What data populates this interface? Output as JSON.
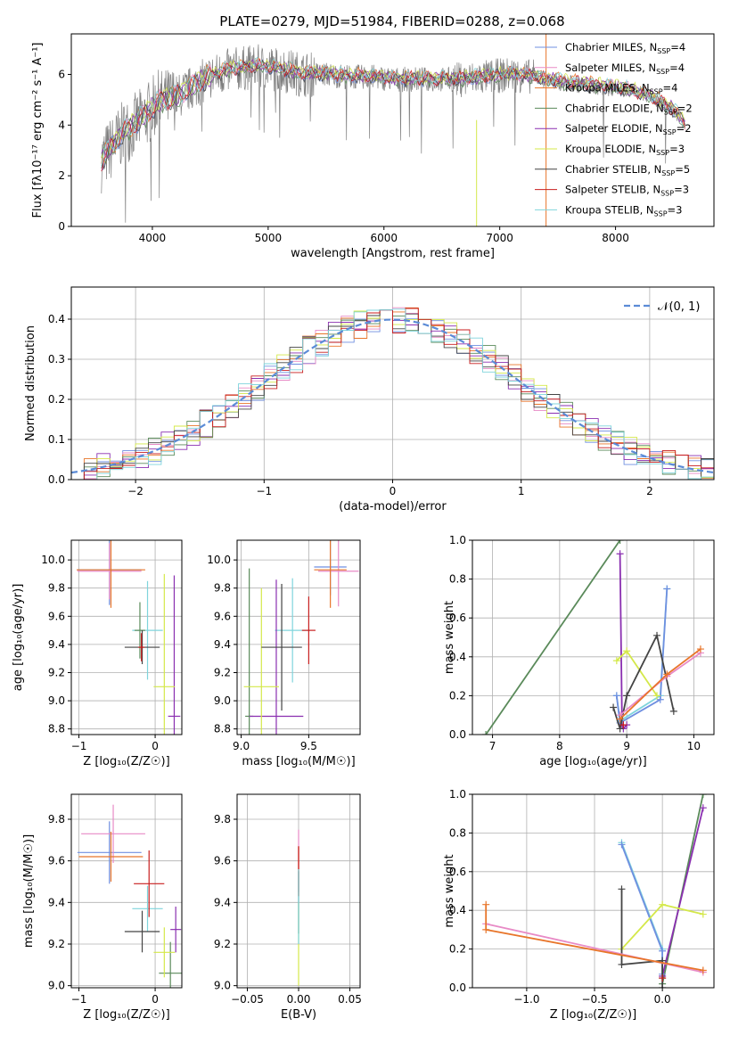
{
  "title": "PLATE=0279, MJD=51984, FIBERID=0288, z=0.068",
  "chart_data": [
    {
      "id": "spectrum",
      "type": "line",
      "xlabel": "wavelength [Angstrom, rest frame]",
      "ylabel": "Flux [fλ10⁻¹⁷ erg cm⁻² s⁻¹ A⁻¹]",
      "xlim": [
        3300,
        8850
      ],
      "ylim": [
        0,
        7.6
      ],
      "xticks": [
        4000,
        5000,
        6000,
        7000,
        8000
      ],
      "yticks": [
        0,
        2,
        4,
        6
      ],
      "legend_position": "top-right",
      "legend": [
        {
          "name": "Chabrier MILES, N",
          "sub": "SSP",
          "suffix": "=4",
          "color": "#6f8fe0"
        },
        {
          "name": "Salpeter MILES, N",
          "sub": "SSP",
          "suffix": "=4",
          "color": "#e88ac6"
        },
        {
          "name": "Kroupa MILES, N",
          "sub": "SSP",
          "suffix": "=4",
          "color": "#e8752a"
        },
        {
          "name": "Chabrier ELODIE, N",
          "sub": "SSP",
          "suffix": "=2",
          "color": "#5a8a5a"
        },
        {
          "name": "Salpeter ELODIE, N",
          "sub": "SSP",
          "suffix": "=2",
          "color": "#8a2fb0"
        },
        {
          "name": "Kroupa ELODIE, N",
          "sub": "SSP",
          "suffix": "=3",
          "color": "#d4e84a"
        },
        {
          "name": "Chabrier STELIB, N",
          "sub": "SSP",
          "suffix": "=5",
          "color": "#444444"
        },
        {
          "name": "Salpeter STELIB, N",
          "sub": "SSP",
          "suffix": "=3",
          "color": "#c81e1e"
        },
        {
          "name": "Kroupa STELIB, N",
          "sub": "SSP",
          "suffix": "=3",
          "color": "#7fd4dc"
        }
      ],
      "model_curve": [
        [
          3560,
          2.6
        ],
        [
          3650,
          3.1
        ],
        [
          3700,
          3.4
        ],
        [
          3750,
          3.7
        ],
        [
          3850,
          4.0
        ],
        [
          3950,
          4.4
        ],
        [
          4050,
          4.9
        ],
        [
          4150,
          5.0
        ],
        [
          4250,
          5.2
        ],
        [
          4350,
          5.5
        ],
        [
          4500,
          5.9
        ],
        [
          4700,
          6.2
        ],
        [
          4900,
          6.3
        ],
        [
          5100,
          6.2
        ],
        [
          5300,
          6.0
        ],
        [
          5500,
          6.0
        ],
        [
          5700,
          5.9
        ],
        [
          5900,
          5.9
        ],
        [
          6100,
          5.8
        ],
        [
          6300,
          5.8
        ],
        [
          6500,
          5.8
        ],
        [
          6700,
          5.8
        ],
        [
          6900,
          5.9
        ],
        [
          7100,
          6.0
        ],
        [
          7300,
          5.9
        ],
        [
          7500,
          5.7
        ],
        [
          7700,
          5.6
        ],
        [
          7900,
          5.5
        ],
        [
          8100,
          5.4
        ],
        [
          8300,
          5.1
        ],
        [
          8500,
          4.6
        ],
        [
          8600,
          4.0
        ]
      ]
    },
    {
      "id": "residuals",
      "type": "line",
      "xlabel": "(data-model)/error",
      "ylabel": "Normed distribution",
      "xlim": [
        -2.5,
        2.5
      ],
      "ylim": [
        0,
        0.48
      ],
      "xticks": [
        -2,
        -1,
        0,
        1,
        2
      ],
      "xticklabels": [
        "−2",
        "−1",
        "0",
        "1",
        "2"
      ],
      "yticks": [
        0,
        0.1,
        0.2,
        0.3,
        0.4
      ],
      "yticklabels": [
        "0.0",
        "0.1",
        "0.2",
        "0.3",
        "0.4"
      ],
      "legend": "𝒩(0, 1)",
      "gaussian_color": "#5b8bd6",
      "bin_width": 0.1
    },
    {
      "id": "age_vs_Z",
      "type": "scatter",
      "xlabel": "Z [log₁₀(Z/Z☉)]",
      "ylabel": "age [log₁₀(age/yr)]",
      "xlim": [
        -1.1,
        0.35
      ],
      "ylim": [
        8.76,
        10.14
      ],
      "xticks": [
        -1,
        0
      ],
      "xticklabels": [
        "−1",
        "0"
      ],
      "yticks": [
        8.8,
        9.0,
        9.2,
        9.4,
        9.6,
        9.8,
        10.0
      ],
      "yticklabels": [
        "8.8",
        "9.0",
        "9.2",
        "9.4",
        "9.6",
        "9.8",
        "10.0"
      ],
      "points": [
        {
          "x": -0.6,
          "y": 9.93,
          "dx": 0.42,
          "dy": 0.25,
          "c": 0
        },
        {
          "x": -0.6,
          "y": 9.92,
          "dx": 0.42,
          "dy": 0.2,
          "c": 1
        },
        {
          "x": -0.58,
          "y": 9.93,
          "dx": 0.45,
          "dy": 0.27,
          "c": 2
        },
        {
          "x": -0.1,
          "y": 9.5,
          "dx": 0.2,
          "dy": 0.35,
          "c": 8
        },
        {
          "x": -0.2,
          "y": 9.5,
          "dx": 0.07,
          "dy": 0.2,
          "c": 3
        },
        {
          "x": 0.25,
          "y": 8.89,
          "dx": 0.08,
          "dy": 1.0,
          "c": 4
        },
        {
          "x": 0.12,
          "y": 9.1,
          "dx": 0.14,
          "dy": 0.8,
          "c": 5
        },
        {
          "x": -0.17,
          "y": 9.38,
          "dx": 0.23,
          "dy": 0.12,
          "c": 6
        },
        {
          "x": -0.18,
          "y": 9.38,
          "dx": 0.04,
          "dy": 0.1,
          "c": 7
        }
      ]
    },
    {
      "id": "age_vs_mass",
      "type": "scatter",
      "xlabel": "mass [log₁₀(M/M☉)]",
      "ylabel": "",
      "xlim": [
        8.97,
        9.88
      ],
      "ylim": [
        8.76,
        10.14
      ],
      "xticks": [
        9.0,
        9.5
      ],
      "xticklabels": [
        "9.0",
        "9.5"
      ],
      "yticks": [
        8.8,
        9.0,
        9.2,
        9.4,
        9.6,
        9.8,
        10.0
      ],
      "yticklabels": [
        "8.8",
        "9.0",
        "9.2",
        "9.4",
        "9.6",
        "9.8",
        "10.0"
      ],
      "points": [
        {
          "x": 9.66,
          "y": 9.95,
          "dx": 0.12,
          "dy": 0.2,
          "c": 0
        },
        {
          "x": 9.72,
          "y": 9.92,
          "dx": 0.15,
          "dy": 0.25,
          "c": 1
        },
        {
          "x": 9.66,
          "y": 9.93,
          "dx": 0.12,
          "dy": 0.27,
          "c": 2
        },
        {
          "x": 9.38,
          "y": 9.5,
          "dx": 0.13,
          "dy": 0.37,
          "c": 8
        },
        {
          "x": 9.06,
          "y": 8.89,
          "dx": 0.03,
          "dy": 1.05,
          "c": 3
        },
        {
          "x": 9.26,
          "y": 8.89,
          "dx": 0.2,
          "dy": 0.97,
          "c": 4
        },
        {
          "x": 9.15,
          "y": 9.1,
          "dx": 0.13,
          "dy": 0.7,
          "c": 5
        },
        {
          "x": 9.3,
          "y": 9.38,
          "dx": 0.15,
          "dy": 0.45,
          "c": 6
        },
        {
          "x": 9.5,
          "y": 9.5,
          "dx": 0.05,
          "dy": 0.24,
          "c": 7
        }
      ]
    },
    {
      "id": "weight_vs_age",
      "type": "line",
      "xlabel": "age [log₁₀(age/yr)]",
      "ylabel": "mass weight",
      "xlim": [
        6.7,
        10.3
      ],
      "ylim": [
        0,
        1.0
      ],
      "xticks": [
        7,
        8,
        9,
        10
      ],
      "xticklabels": [
        "7",
        "8",
        "9",
        "10"
      ],
      "yticks": [
        0,
        0.2,
        0.4,
        0.6,
        0.8,
        1.0
      ],
      "yticklabels": [
        "0.0",
        "0.2",
        "0.4",
        "0.6",
        "0.8",
        "1.0"
      ],
      "series": [
        {
          "c": 3,
          "x": [
            6.9,
            8.9
          ],
          "y": [
            0.0,
            1.0
          ]
        },
        {
          "c": 4,
          "x": [
            8.9,
            8.93,
            8.95,
            9.0
          ],
          "y": [
            0.93,
            0.05,
            0.03,
            0.05
          ]
        },
        {
          "c": 8,
          "x": [
            8.85,
            8.9,
            9.5,
            9.6
          ],
          "y": [
            0.2,
            0.07,
            0.2,
            0.75
          ]
        },
        {
          "c": 0,
          "x": [
            8.85,
            8.9,
            9.5,
            9.6
          ],
          "y": [
            0.2,
            0.06,
            0.18,
            0.75
          ]
        },
        {
          "c": 5,
          "x": [
            8.85,
            9.0,
            9.45
          ],
          "y": [
            0.38,
            0.43,
            0.2
          ]
        },
        {
          "c": 6,
          "x": [
            8.8,
            8.9,
            9.0,
            9.45,
            9.7
          ],
          "y": [
            0.14,
            0.03,
            0.2,
            0.51,
            0.12
          ]
        },
        {
          "c": 1,
          "x": [
            8.9,
            9.6,
            10.1
          ],
          "y": [
            0.1,
            0.3,
            0.42
          ]
        },
        {
          "c": 2,
          "x": [
            8.9,
            9.6,
            10.1
          ],
          "y": [
            0.08,
            0.31,
            0.44
          ]
        },
        {
          "c": 7,
          "x": [
            8.95
          ],
          "y": [
            0.05
          ]
        }
      ]
    },
    {
      "id": "mass_vs_Z",
      "type": "scatter",
      "xlabel": "Z [log₁₀(Z/Z☉)]",
      "ylabel": "mass [log₁₀(M/M☉)]",
      "xlim": [
        -1.1,
        0.35
      ],
      "ylim": [
        8.99,
        9.92
      ],
      "xticks": [
        -1,
        0
      ],
      "xticklabels": [
        "−1",
        "0"
      ],
      "yticks": [
        9.0,
        9.2,
        9.4,
        9.6,
        9.8
      ],
      "yticklabels": [
        "9.0",
        "9.2",
        "9.4",
        "9.6",
        "9.8"
      ],
      "points": [
        {
          "x": -0.6,
          "y": 9.64,
          "dx": 0.42,
          "dy": 0.15,
          "c": 0
        },
        {
          "x": -0.55,
          "y": 9.73,
          "dx": 0.42,
          "dy": 0.14,
          "c": 1
        },
        {
          "x": -0.58,
          "y": 9.62,
          "dx": 0.42,
          "dy": 0.12,
          "c": 2
        },
        {
          "x": -0.1,
          "y": 9.37,
          "dx": 0.2,
          "dy": 0.11,
          "c": 8
        },
        {
          "x": 0.2,
          "y": 9.06,
          "dx": 0.15,
          "dy": 0.15,
          "c": 3
        },
        {
          "x": 0.27,
          "y": 9.27,
          "dx": 0.07,
          "dy": 0.11,
          "c": 4
        },
        {
          "x": 0.12,
          "y": 9.16,
          "dx": 0.14,
          "dy": 0.12,
          "c": 5
        },
        {
          "x": -0.17,
          "y": 9.26,
          "dx": 0.23,
          "dy": 0.1,
          "c": 6
        },
        {
          "x": -0.08,
          "y": 9.49,
          "dx": 0.2,
          "dy": 0.16,
          "c": 7
        }
      ]
    },
    {
      "id": "mass_vs_EBV",
      "type": "scatter",
      "xlabel": "E(B-V)",
      "ylabel": "",
      "xlim": [
        -0.06,
        0.06
      ],
      "ylim": [
        8.99,
        9.92
      ],
      "xticks": [
        -0.05,
        0,
        0.05
      ],
      "xticklabels": [
        "−0.05",
        "0.00",
        "0.05"
      ],
      "yticks": [
        9.0,
        9.2,
        9.4,
        9.6,
        9.8
      ],
      "yticklabels": [
        "9.0",
        "9.2",
        "9.4",
        "9.6",
        "9.8"
      ],
      "points": [
        {
          "x": 0,
          "y": 9.6,
          "dx": 0,
          "dy": 0.15,
          "c": 1
        },
        {
          "x": 0,
          "y": 9.55,
          "dx": 0,
          "dy": 0.12,
          "c": 2
        },
        {
          "x": 0,
          "y": 9.4,
          "dx": 0,
          "dy": 0.15,
          "c": 6
        },
        {
          "x": 0,
          "y": 9.55,
          "dx": 0,
          "dy": 0.12,
          "c": 7
        },
        {
          "x": 0,
          "y": 9.2,
          "dx": 0,
          "dy": 0.2,
          "c": 5
        },
        {
          "x": 0,
          "y": 9.38,
          "dx": 0,
          "dy": 0.18,
          "c": 8
        }
      ]
    },
    {
      "id": "weight_vs_Z",
      "type": "line",
      "xlabel": "Z [log₁₀(Z/Z☉)]",
      "ylabel": "mass weight",
      "xlim": [
        -1.4,
        0.38
      ],
      "ylim": [
        0,
        1.0
      ],
      "xticks": [
        -1.0,
        -0.5,
        0.0
      ],
      "xticklabels": [
        "−1.0",
        "−0.5",
        "0.0"
      ],
      "yticks": [
        0,
        0.2,
        0.4,
        0.6,
        0.8,
        1.0
      ],
      "yticklabels": [
        "0.0",
        "0.2",
        "0.4",
        "0.6",
        "0.8",
        "1.0"
      ],
      "series": [
        {
          "c": 3,
          "x": [
            0,
            0.3
          ],
          "y": [
            0.02,
            1.0
          ]
        },
        {
          "c": 4,
          "x": [
            0,
            0.3
          ],
          "y": [
            0.06,
            0.93
          ]
        },
        {
          "c": 8,
          "x": [
            -0.3,
            0,
            0
          ],
          "y": [
            0.75,
            0.2,
            0.05
          ]
        },
        {
          "c": 0,
          "x": [
            -0.3,
            0,
            0
          ],
          "y": [
            0.74,
            0.19,
            0.07
          ]
        },
        {
          "c": 5,
          "x": [
            -0.3,
            0,
            0.3
          ],
          "y": [
            0.2,
            0.43,
            0.38
          ]
        },
        {
          "c": 6,
          "x": [
            -0.3,
            -0.3,
            0,
            0
          ],
          "y": [
            0.51,
            0.12,
            0.14,
            0.0
          ]
        },
        {
          "c": 1,
          "x": [
            -1.3,
            0.3
          ],
          "y": [
            0.33,
            0.08
          ]
        },
        {
          "c": 2,
          "x": [
            -1.3,
            -1.3,
            0.3
          ],
          "y": [
            0.43,
            0.3,
            0.09
          ]
        },
        {
          "c": 7,
          "x": [
            0.0
          ],
          "y": [
            0.05
          ]
        }
      ]
    }
  ]
}
